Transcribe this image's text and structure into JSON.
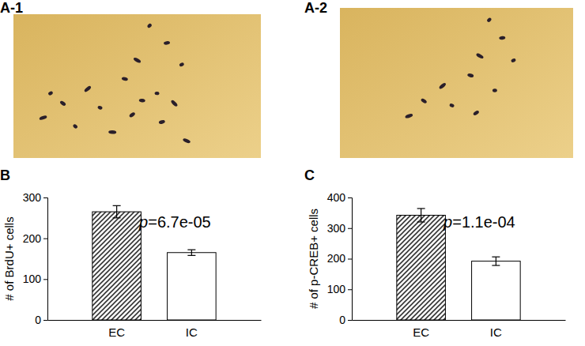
{
  "panels": [
    {
      "label": "A-1"
    },
    {
      "label": "A-2"
    }
  ],
  "chart_data": [
    {
      "type": "bar",
      "panel_label": "B",
      "categories": [
        "EC",
        "IC"
      ],
      "values": [
        265,
        165
      ],
      "errors": [
        15,
        7
      ],
      "colors": [
        "#333333",
        "#ffffff"
      ],
      "y_label": "# of BrdU+ cells",
      "ylim": [
        0,
        300
      ],
      "yticks": [
        0,
        100,
        200,
        300
      ],
      "grid": false,
      "annotations": [
        "p=6.7e-05"
      ]
    },
    {
      "type": "bar",
      "panel_label": "C",
      "categories": [
        "EC",
        "IC"
      ],
      "values": [
        342,
        192
      ],
      "errors": [
        22,
        14
      ],
      "colors": [
        "#333333",
        "#ffffff"
      ],
      "y_label": "# of p-CREB+ cells",
      "ylim": [
        0,
        400
      ],
      "yticks": [
        0,
        100,
        200,
        300,
        400
      ],
      "grid": false,
      "annotations": [
        "p=1.1e-04"
      ]
    }
  ]
}
